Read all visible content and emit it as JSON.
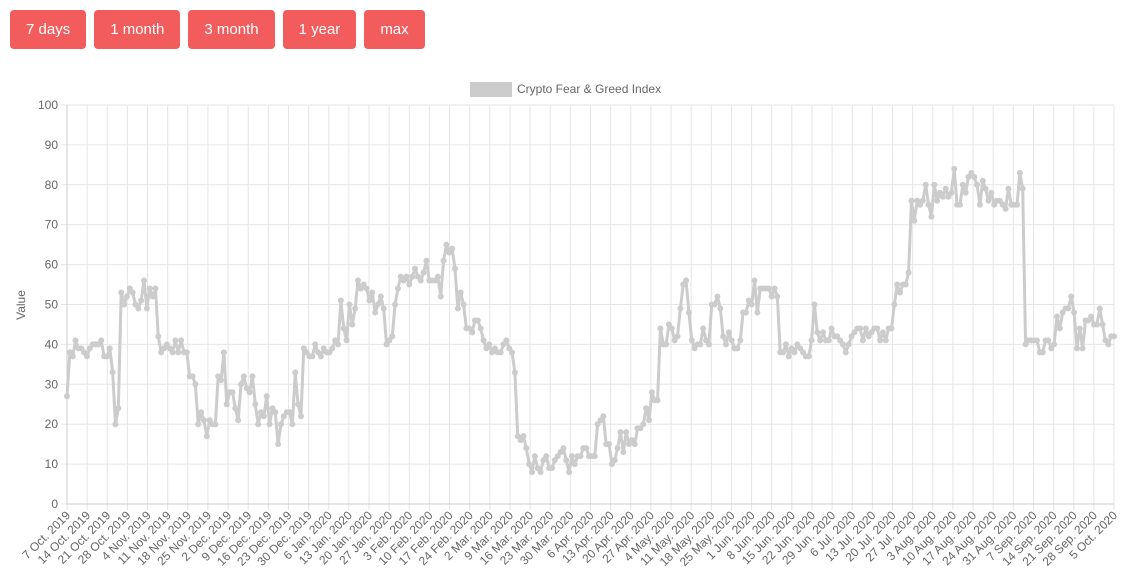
{
  "range_buttons": [
    "7 days",
    "1 month",
    "3 month",
    "1 year",
    "max"
  ],
  "colors": {
    "button_bg": "#f25c5c",
    "series": "#cccccc",
    "grid": "#e6e6e6"
  },
  "chart_data": {
    "type": "line",
    "title": "",
    "xlabel": "",
    "ylabel": "Value",
    "ylim": [
      0,
      100
    ],
    "yticks": [
      0,
      10,
      20,
      30,
      40,
      50,
      60,
      70,
      80,
      90,
      100
    ],
    "grid": true,
    "legend_position": "top-center",
    "x_tick_labels": [
      "7 Oct. 2019",
      "14 Oct. 2019",
      "21 Oct. 2019",
      "28 Oct. 2019",
      "4 Nov. 2019",
      "11 Nov. 2019",
      "18 Nov. 2019",
      "25 Nov. 2019",
      "2 Dec. 2019",
      "9 Dec. 2019",
      "16 Dec. 2019",
      "23 Dec. 2019",
      "30 Dec. 2019",
      "6 Jan. 2020",
      "13 Jan. 2020",
      "20 Jan. 2020",
      "27 Jan. 2020",
      "3 Feb. 2020",
      "10 Feb. 2020",
      "17 Feb. 2020",
      "24 Feb. 2020",
      "2 Mar. 2020",
      "9 Mar. 2020",
      "16 Mar. 2020",
      "23 Mar. 2020",
      "30 Mar. 2020",
      "6 Apr. 2020",
      "13 Apr. 2020",
      "20 Apr. 2020",
      "27 Apr. 2020",
      "4 May. 2020",
      "11 May. 2020",
      "18 May. 2020",
      "25 May. 2020",
      "1 Jun. 2020",
      "8 Jun. 2020",
      "15 Jun. 2020",
      "22 Jun. 2020",
      "29 Jun. 2020",
      "6 Jul. 2020",
      "13 Jul. 2020",
      "20 Jul. 2020",
      "27 Jul. 2020",
      "3 Aug. 2020",
      "10 Aug. 2020",
      "17 Aug. 2020",
      "24 Aug. 2020",
      "31 Aug. 2020",
      "7 Sep. 2020",
      "14 Sep. 2020",
      "21 Sep. 2020",
      "28 Sep. 2020",
      "5 Oct. 2020"
    ],
    "series": [
      {
        "name": "Crypto Fear & Greed Index",
        "values": [
          27,
          38,
          37,
          41,
          39,
          39,
          38,
          37,
          39,
          40,
          40,
          40,
          41,
          37,
          37,
          39,
          33,
          20,
          24,
          53,
          50,
          52,
          54,
          53,
          50,
          49,
          51,
          56,
          49,
          54,
          52,
          54,
          42,
          38,
          39,
          40,
          39,
          38,
          41,
          38,
          41,
          38,
          38,
          32,
          32,
          30,
          20,
          23,
          21,
          17,
          21,
          20,
          20,
          32,
          31,
          38,
          25,
          28,
          28,
          24,
          21,
          30,
          32,
          29,
          28,
          32,
          25,
          20,
          23,
          22,
          27,
          20,
          24,
          23,
          15,
          20,
          22,
          23,
          23,
          20,
          33,
          25,
          22,
          39,
          38,
          37,
          37,
          40,
          38,
          37,
          39,
          38,
          38,
          39,
          41,
          40,
          51,
          44,
          41,
          50,
          45,
          49,
          56,
          54,
          55,
          54,
          51,
          53,
          48,
          50,
          52,
          49,
          40,
          41,
          42,
          50,
          54,
          57,
          56,
          57,
          55,
          57,
          59,
          57,
          56,
          58,
          61,
          56,
          56,
          56,
          57,
          52,
          61,
          65,
          63,
          64,
          59,
          49,
          53,
          50,
          44,
          44,
          43,
          46,
          46,
          44,
          41,
          39,
          40,
          38,
          39,
          38,
          38,
          40,
          41,
          39,
          38,
          33,
          17,
          16,
          17,
          14,
          10,
          8,
          12,
          9,
          8,
          11,
          12,
          9,
          9,
          11,
          12,
          13,
          14,
          11,
          8,
          12,
          10,
          12,
          12,
          14,
          14,
          12,
          12,
          12,
          20,
          21,
          22,
          15,
          15,
          10,
          11,
          14,
          18,
          13,
          18,
          15,
          16,
          15,
          19,
          19,
          20,
          24,
          21,
          28,
          26,
          26,
          44,
          40,
          40,
          45,
          44,
          41,
          42,
          49,
          55,
          56,
          48,
          41,
          39,
          40,
          40,
          44,
          41,
          40,
          50,
          50,
          52,
          49,
          42,
          40,
          43,
          41,
          39,
          39,
          41,
          48,
          48,
          51,
          50,
          56,
          48,
          54,
          54,
          54,
          54,
          52,
          54,
          52,
          38,
          38,
          40,
          37,
          39,
          38,
          40,
          39,
          38,
          37,
          37,
          41,
          50,
          43,
          41,
          43,
          41,
          41,
          44,
          42,
          42,
          41,
          40,
          38,
          40,
          42,
          43,
          44,
          44,
          41,
          44,
          42,
          43,
          44,
          44,
          41,
          43,
          41,
          44,
          44,
          50,
          55,
          53,
          55,
          55,
          58,
          76,
          71,
          76,
          75,
          76,
          80,
          75,
          72,
          80,
          76,
          78,
          77,
          79,
          77,
          78,
          84,
          75,
          75,
          80,
          78,
          82,
          83,
          82,
          80,
          75,
          81,
          79,
          76,
          78,
          75,
          76,
          76,
          75,
          74,
          79,
          75,
          75,
          75,
          83,
          79,
          40,
          41,
          41,
          41,
          41,
          38,
          38,
          41,
          41,
          39,
          40,
          47,
          44,
          48,
          49,
          49,
          52,
          48,
          39,
          44,
          39,
          46,
          46,
          47,
          45,
          45,
          49,
          45,
          41,
          40,
          42,
          42
        ]
      }
    ]
  }
}
